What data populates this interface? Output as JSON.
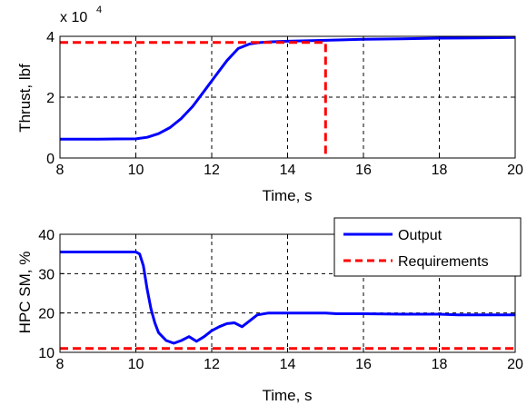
{
  "colors": {
    "output": "#0000ff",
    "requirements": "#ff0000",
    "axes": "#000000",
    "background": "#ffffff"
  },
  "chart_data": [
    {
      "type": "line",
      "xlabel": "Time, s",
      "ylabel": "Thrust, lbf",
      "y_multiplier_label": "x 10",
      "y_multiplier_exponent": "4",
      "xlim": [
        8,
        20
      ],
      "ylim": [
        0,
        4
      ],
      "xticks": [
        8,
        10,
        12,
        14,
        16,
        18,
        20
      ],
      "yticks": [
        0,
        2,
        4
      ],
      "grid": true,
      "series": [
        {
          "role": "output",
          "color": "#0000ff",
          "style": "solid",
          "x": [
            8,
            9,
            10,
            10.3,
            10.6,
            10.9,
            11.2,
            11.5,
            11.8,
            12.1,
            12.4,
            12.7,
            13.0,
            13.3,
            13.6,
            14,
            15,
            16,
            17,
            18,
            19,
            20
          ],
          "y": [
            0.62,
            0.62,
            0.63,
            0.68,
            0.8,
            1.0,
            1.3,
            1.7,
            2.2,
            2.7,
            3.2,
            3.6,
            3.75,
            3.8,
            3.82,
            3.84,
            3.87,
            3.9,
            3.92,
            3.94,
            3.95,
            3.96
          ]
        },
        {
          "role": "requirements",
          "color": "#ff0000",
          "style": "dashed",
          "x": [
            8,
            15,
            15
          ],
          "y": [
            3.8,
            3.8,
            0
          ]
        }
      ]
    },
    {
      "type": "line",
      "xlabel": "Time, s",
      "ylabel": "HPC SM, %",
      "xlim": [
        8,
        20
      ],
      "ylim": [
        10,
        40
      ],
      "xticks": [
        8,
        10,
        12,
        14,
        16,
        18,
        20
      ],
      "yticks": [
        10,
        20,
        30,
        40
      ],
      "grid": true,
      "legend": {
        "placement": "top-right",
        "entries": [
          "Output",
          "Requirements"
        ]
      },
      "series": [
        {
          "name": "Output",
          "color": "#0000ff",
          "style": "solid",
          "x": [
            8,
            9,
            10,
            10.1,
            10.2,
            10.3,
            10.4,
            10.5,
            10.6,
            10.8,
            11.0,
            11.2,
            11.4,
            11.6,
            11.8,
            12.0,
            12.2,
            12.4,
            12.6,
            12.8,
            13.0,
            13.2,
            13.5,
            14,
            15,
            15.3,
            16,
            17,
            18,
            18.5,
            19,
            20
          ],
          "y": [
            35.5,
            35.5,
            35.5,
            35,
            32,
            26,
            21,
            17.5,
            15,
            13,
            12.3,
            13,
            14,
            12.8,
            14,
            15.5,
            16.5,
            17.3,
            17.5,
            16.5,
            18,
            19.5,
            20,
            20,
            20,
            19.8,
            19.8,
            19.7,
            19.7,
            19.5,
            19.5,
            19.5
          ]
        },
        {
          "name": "Requirements",
          "color": "#ff0000",
          "style": "dashed",
          "x": [
            8,
            20
          ],
          "y": [
            11,
            11
          ]
        }
      ]
    }
  ]
}
